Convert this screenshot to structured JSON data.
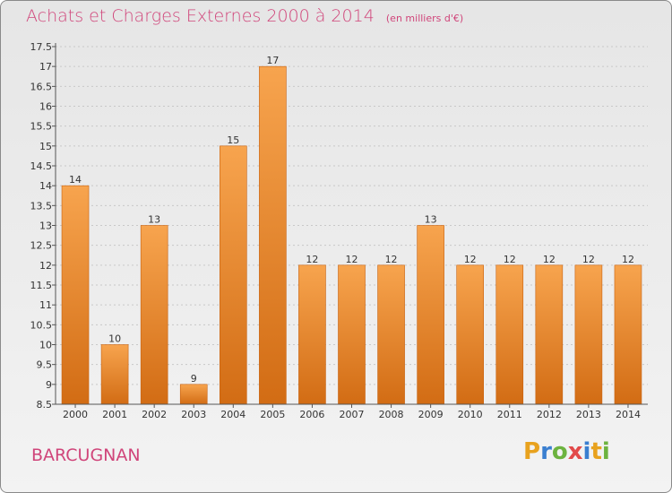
{
  "header": {
    "title": "Achats et Charges Externes 2000 à 2014",
    "unit": "(en milliers d'€)"
  },
  "commune": "BARCUGNAN",
  "logo": {
    "text": "Proxiti",
    "colors": [
      "#e8a21e",
      "#3a7fd0",
      "#6db33f",
      "#e24a4a",
      "#3a7fd0",
      "#e8a21e",
      "#6db33f"
    ]
  },
  "colors": {
    "bar_top": "#f7a44e",
    "bar_bottom": "#d26c14",
    "title": "#d0457a",
    "axis": "#555555",
    "grid": "#c8c8c8"
  },
  "chart_data": {
    "type": "bar",
    "title": "Achats et Charges Externes 2000 à 2014",
    "subtitle": "(en milliers d'€)",
    "xlabel": "",
    "ylabel": "",
    "categories": [
      "2000",
      "2001",
      "2002",
      "2003",
      "2004",
      "2005",
      "2006",
      "2007",
      "2008",
      "2009",
      "2010",
      "2011",
      "2012",
      "2013",
      "2014"
    ],
    "values": [
      14,
      10,
      13,
      9,
      15,
      17,
      12,
      12,
      12,
      13,
      12,
      12,
      12,
      12,
      12
    ],
    "ylim": [
      8.5,
      17.5
    ],
    "yticks": [
      "8.5",
      "9",
      "9.5",
      "10",
      "10.5",
      "11",
      "11.5",
      "12",
      "12.5",
      "13",
      "13.5",
      "14",
      "14.5",
      "15",
      "15.5",
      "16",
      "16.5",
      "17",
      "17.5"
    ],
    "grid": true,
    "legend": "none"
  }
}
